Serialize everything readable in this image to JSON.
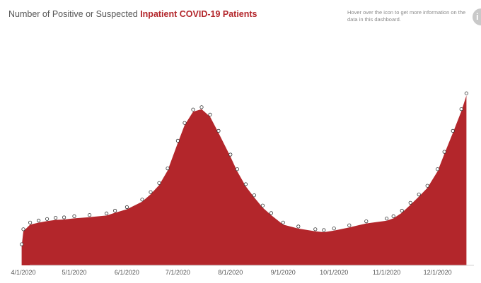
{
  "header": {
    "title_prefix": "Number of Positive or Suspected ",
    "title_highlight": "Inpatient COVID-19 Patients",
    "hover_note": "Hover over the icon to get more information on the data in this dashboard.",
    "info_icon_glyph": "i"
  },
  "colors": {
    "area_fill": "#b3262b",
    "title_accent": "#b3262b",
    "point_stroke": "#333333"
  },
  "chart_data": {
    "type": "area",
    "title": "Number of Positive or Suspected Inpatient COVID-19 Patients",
    "xlabel": "",
    "ylabel": "",
    "x_tick_labels": [
      "4/1/2020",
      "5/1/2020",
      "6/1/2020",
      "7/1/2020",
      "8/1/2020",
      "9/1/2020",
      "10/1/2020",
      "11/1/2020",
      "12/1/2020"
    ],
    "ylim": [
      0,
      6000
    ],
    "grid": false,
    "y_axis_visible": false,
    "series": [
      {
        "x": [
          "3/31/2020",
          "4/1/2020",
          "4/5/2020",
          "4/10/2020",
          "4/15/2020",
          "4/20/2020",
          "4/25/2020",
          "5/1/2020",
          "5/10/2020",
          "5/20/2020",
          "5/25/2020",
          "6/1/2020",
          "6/10/2020",
          "6/15/2020",
          "6/20/2020",
          "6/25/2020",
          "7/1/2020",
          "7/5/2020",
          "7/10/2020",
          "7/15/2020",
          "7/20/2020",
          "7/25/2020",
          "8/1/2020",
          "8/5/2020",
          "8/10/2020",
          "8/15/2020",
          "8/20/2020",
          "8/25/2020",
          "9/1/2020",
          "9/10/2020",
          "9/20/2020",
          "9/25/2020",
          "10/1/2020",
          "10/10/2020",
          "10/20/2020",
          "11/1/2020",
          "11/5/2020",
          "11/10/2020",
          "11/15/2020",
          "11/20/2020",
          "11/25/2020",
          "12/1/2020",
          "12/5/2020",
          "12/10/2020",
          "12/15/2020",
          "12/18/2020"
        ],
        "values": [
          480,
          860,
          1030,
          1080,
          1120,
          1150,
          1160,
          1190,
          1220,
          1260,
          1330,
          1420,
          1610,
          1800,
          2030,
          2400,
          3100,
          3550,
          3890,
          3950,
          3760,
          3350,
          2750,
          2380,
          2000,
          1720,
          1460,
          1270,
          1030,
          930,
          860,
          840,
          880,
          960,
          1060,
          1130,
          1190,
          1330,
          1530,
          1740,
          1960,
          2380,
          2820,
          3350,
          3900,
          4300
        ]
      }
    ]
  }
}
